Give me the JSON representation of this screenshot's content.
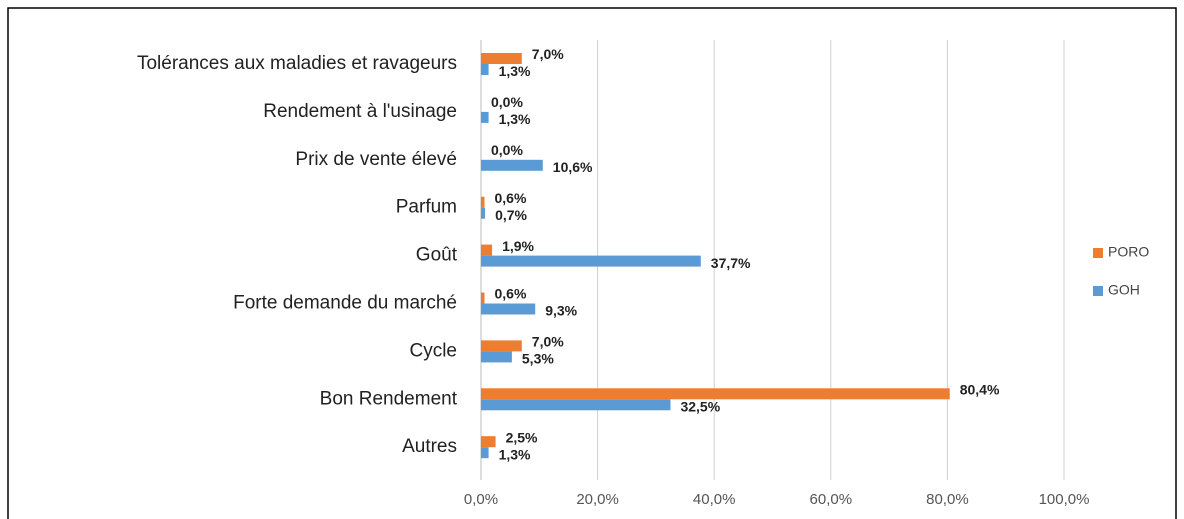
{
  "chart_data": {
    "type": "hbar",
    "categories": [
      "Tolérances aux maladies et ravageurs",
      "Rendement à l'usinage",
      "Prix de vente élevé",
      "Parfum",
      "Goût",
      "Forte demande du marché",
      "Cycle",
      "Bon Rendement",
      "Autres"
    ],
    "series": [
      {
        "name": "PORO",
        "color": "#ed7d31",
        "values": [
          7.0,
          0.0,
          0.0,
          0.6,
          1.9,
          0.6,
          7.0,
          80.4,
          2.5
        ],
        "value_labels": [
          "7,0%",
          "0,0%",
          "0,0%",
          "0,6%",
          "1,9%",
          "0,6%",
          "7,0%",
          "80,4%",
          "2,5%"
        ]
      },
      {
        "name": "GOH",
        "color": "#5b9bd5",
        "values": [
          1.3,
          1.3,
          10.6,
          0.7,
          37.7,
          9.3,
          5.3,
          32.5,
          1.3
        ],
        "value_labels": [
          "1,3%",
          "1,3%",
          "10,6%",
          "0,7%",
          "37,7%",
          "9,3%",
          "5,3%",
          "32,5%",
          "1,3%"
        ]
      }
    ],
    "xlim": [
      0,
      100
    ],
    "xticks": [
      {
        "value": 0,
        "label": "0,0%"
      },
      {
        "value": 20,
        "label": "20,0%"
      },
      {
        "value": 40,
        "label": "40,0%"
      },
      {
        "value": 60,
        "label": "60,0%"
      },
      {
        "value": 80,
        "label": "80,0%"
      },
      {
        "value": 100,
        "label": "100,0%"
      }
    ],
    "grid": true,
    "legend": "right"
  }
}
